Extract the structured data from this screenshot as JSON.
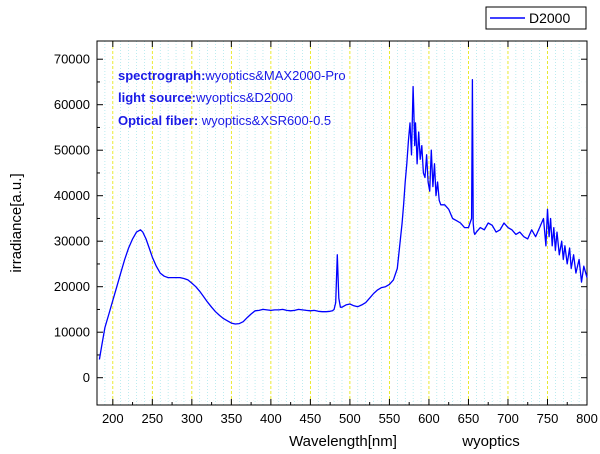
{
  "chart_data": {
    "type": "line",
    "title": "",
    "xlabel": "Wavelength[nm]",
    "ylabel": "irradiance[a.u.]",
    "watermark": "wyoptics",
    "xlim": [
      180,
      800
    ],
    "ylim": [
      -6000,
      74000
    ],
    "x_ticks": [
      200,
      250,
      300,
      350,
      400,
      450,
      500,
      550,
      600,
      650,
      700,
      750,
      800
    ],
    "y_ticks": [
      0,
      10000,
      20000,
      30000,
      40000,
      50000,
      60000,
      70000
    ],
    "grid": true,
    "legend_position": "top-right",
    "annotations": [
      {
        "bold": "spectrograph:",
        "text": "wyoptics&MAX2000-Pro"
      },
      {
        "bold": "light source:",
        "text": "wyoptics&D2000"
      },
      {
        "bold": "Optical fiber: ",
        "text": "wyoptics&XSR600-0.5"
      }
    ],
    "series": [
      {
        "name": "D2000",
        "color": "#0000ff",
        "x": [
          183,
          186,
          190,
          195,
          200,
          205,
          210,
          215,
          220,
          225,
          230,
          235,
          238,
          242,
          246,
          250,
          255,
          260,
          265,
          270,
          275,
          280,
          285,
          290,
          295,
          300,
          305,
          310,
          315,
          320,
          325,
          330,
          335,
          340,
          345,
          350,
          355,
          360,
          365,
          370,
          375,
          380,
          385,
          390,
          395,
          400,
          405,
          410,
          415,
          420,
          425,
          430,
          435,
          440,
          445,
          450,
          455,
          460,
          465,
          470,
          475,
          478,
          480,
          482,
          484,
          486,
          488,
          490,
          495,
          500,
          505,
          510,
          515,
          520,
          525,
          530,
          535,
          540,
          545,
          550,
          555,
          560,
          563,
          566,
          568,
          570,
          572,
          574,
          576,
          578,
          580,
          581,
          582,
          583,
          584,
          585,
          587,
          589,
          591,
          593,
          595,
          597,
          599,
          601,
          603,
          605,
          607,
          609,
          611,
          613,
          615,
          620,
          625,
          630,
          635,
          640,
          645,
          650,
          652,
          654,
          655,
          656,
          657,
          658,
          660,
          665,
          670,
          675,
          680,
          685,
          690,
          695,
          700,
          705,
          710,
          715,
          720,
          725,
          730,
          735,
          740,
          745,
          748,
          750,
          752,
          754,
          756,
          758,
          760,
          762,
          765,
          768,
          770,
          772,
          775,
          778,
          780,
          783,
          786,
          790,
          793,
          796,
          800
        ],
        "y": [
          4000,
          7000,
          11000,
          14000,
          17000,
          20000,
          23000,
          26000,
          28500,
          30500,
          32000,
          32500,
          32000,
          30500,
          28500,
          26500,
          24500,
          23000,
          22300,
          22000,
          22000,
          22000,
          22000,
          21800,
          21500,
          20800,
          20000,
          19000,
          17800,
          16600,
          15500,
          14500,
          13700,
          13000,
          12500,
          12000,
          11800,
          11900,
          12300,
          13200,
          14000,
          14700,
          14800,
          15000,
          14900,
          14800,
          14900,
          14900,
          15000,
          14800,
          14700,
          14800,
          15000,
          14900,
          14800,
          14700,
          14800,
          14600,
          14500,
          14500,
          14600,
          14700,
          15000,
          16500,
          27000,
          17500,
          15500,
          15500,
          16000,
          16200,
          15800,
          15600,
          16000,
          16500,
          17500,
          18500,
          19300,
          19800,
          20000,
          20500,
          21500,
          24000,
          29000,
          34000,
          38000,
          43000,
          47000,
          52000,
          56000,
          49000,
          64000,
          58000,
          51000,
          56000,
          52000,
          47000,
          54000,
          48000,
          51000,
          45000,
          44000,
          49000,
          43000,
          41000,
          50000,
          42000,
          47000,
          40000,
          43000,
          39000,
          38000,
          38000,
          37000,
          35000,
          34500,
          34000,
          33000,
          33000,
          34000,
          35000,
          65500,
          34000,
          32000,
          31500,
          32000,
          33000,
          32500,
          34000,
          33500,
          32000,
          32500,
          34000,
          33000,
          32500,
          31500,
          32000,
          31000,
          30500,
          32500,
          31000,
          33000,
          35000,
          29000,
          37000,
          31000,
          35000,
          29000,
          33000,
          28000,
          32000,
          27000,
          30000,
          26000,
          29000,
          25000,
          28500,
          24000,
          27000,
          23000,
          26000,
          21000,
          24500,
          22000
        ]
      }
    ]
  }
}
